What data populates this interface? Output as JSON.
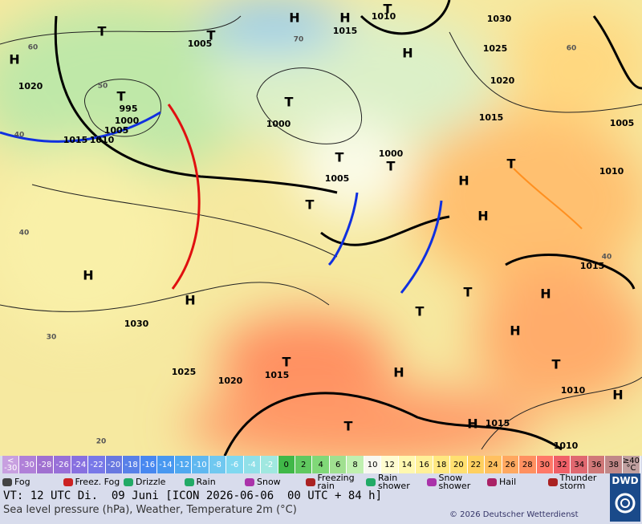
{
  "map": {
    "labels": [
      "H",
      "H",
      "H",
      "H",
      "T",
      "T",
      "T",
      "H",
      "H",
      "T",
      "T",
      "T",
      "T",
      "T",
      "H",
      "H",
      "T",
      "T",
      "T",
      "H",
      "H",
      "H",
      "T",
      "T",
      "H",
      "T",
      "H",
      1030,
      1025,
      1020,
      1015,
      1005,
      1010,
      1015,
      1010,
      1015,
      1010,
      1010,
      1015,
      1005,
      1020,
      995,
      1000,
      1005,
      1015,
      1010,
      1000,
      1000,
      1005,
      1030,
      1025,
      1020,
      1015,
      40,
      40,
      30,
      20,
      50,
      60,
      70,
      40,
      60
    ]
  },
  "temperature_scale": {
    "below_label": "<",
    "below_value": -30,
    "values": [
      -30,
      -28,
      -26,
      -24,
      -22,
      -20,
      -18,
      -16,
      -14,
      -12,
      -10,
      -8,
      -6,
      -4,
      -2,
      0,
      2,
      4,
      6,
      8,
      10,
      12,
      14,
      16,
      18,
      20,
      22,
      24,
      26,
      28,
      30,
      32,
      34,
      36,
      38
    ],
    "above_label": "≥40",
    "unit": "°C",
    "colors": [
      "#c8a0e0",
      "#b080d8",
      "#a070d0",
      "#9870d8",
      "#8870e0",
      "#7878e8",
      "#6878e0",
      "#5880e8",
      "#4888f0",
      "#4898f0",
      "#50a8f0",
      "#60b8f0",
      "#70c8f0",
      "#80d8f0",
      "#90e0e8",
      "#a0e8e0",
      "#40b848",
      "#60c860",
      "#80d878",
      "#a0e090",
      "#c0f0b0",
      "#f8f8f0",
      "#fffcd0",
      "#fff8b0",
      "#fff098",
      "#ffe880",
      "#ffe070",
      "#ffd060",
      "#ffc060",
      "#ffa860",
      "#ff9060",
      "#ff7868",
      "#f06068",
      "#e06870",
      "#d07878",
      "#c08888",
      "#c0a0a0"
    ]
  },
  "weather_legend": [
    "Fog",
    "Freez. Fog",
    "Drizzle",
    "Rain",
    "Snow",
    "Freezing rain",
    "Rain shower",
    "Snow shower",
    "Hail",
    "Thunder storm"
  ],
  "footer": {
    "valid_time": "VT: 12 UTC Di.  09 Juni [ICON 2026-06-06  00 UTC + 84 h]",
    "description": "Sea level pressure (hPa), Weather, Temperature 2m (°C)",
    "copyright": "© 2026 Deutscher Wetterdienst",
    "logo": "DWD"
  }
}
